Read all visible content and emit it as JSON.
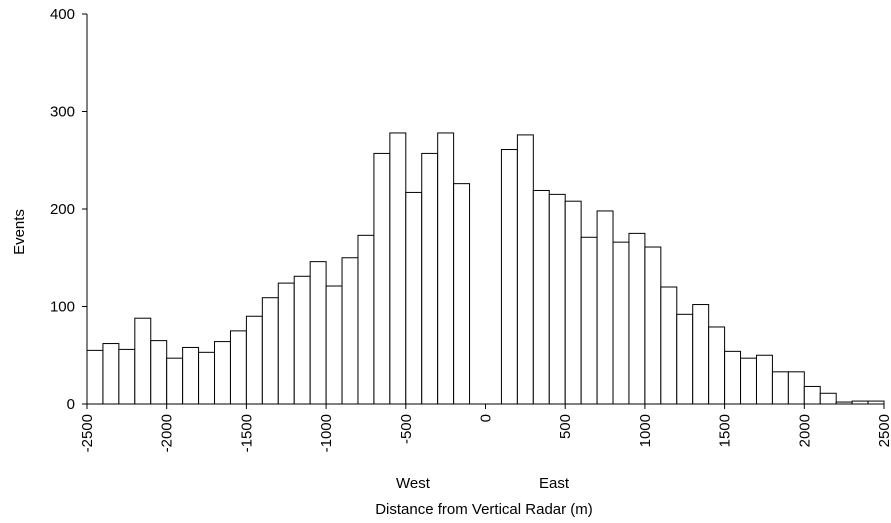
{
  "chart_data": {
    "type": "bar",
    "xlabel": "Distance from Vertical Radar (m)",
    "ylabel": "Events",
    "direction_labels": {
      "west": "West",
      "east": "East"
    },
    "ylim": [
      0,
      400
    ],
    "yticks": [
      0,
      100,
      200,
      300,
      400
    ],
    "xlim": [
      -2500,
      2500
    ],
    "xticks": [
      -2500,
      -2000,
      -1500,
      -1000,
      -500,
      0,
      500,
      1000,
      1500,
      2000,
      2500
    ],
    "bin_width": 100,
    "bins": [
      {
        "x": -2500,
        "value": 55
      },
      {
        "x": -2400,
        "value": 62
      },
      {
        "x": -2300,
        "value": 56
      },
      {
        "x": -2200,
        "value": 88
      },
      {
        "x": -2100,
        "value": 65
      },
      {
        "x": -2000,
        "value": 47
      },
      {
        "x": -1900,
        "value": 58
      },
      {
        "x": -1800,
        "value": 53
      },
      {
        "x": -1700,
        "value": 64
      },
      {
        "x": -1600,
        "value": 75
      },
      {
        "x": -1500,
        "value": 90
      },
      {
        "x": -1400,
        "value": 109
      },
      {
        "x": -1300,
        "value": 124
      },
      {
        "x": -1200,
        "value": 131
      },
      {
        "x": -1100,
        "value": 146
      },
      {
        "x": -1000,
        "value": 121
      },
      {
        "x": -900,
        "value": 150
      },
      {
        "x": -800,
        "value": 173
      },
      {
        "x": -700,
        "value": 257
      },
      {
        "x": -600,
        "value": 278
      },
      {
        "x": -500,
        "value": 217
      },
      {
        "x": -400,
        "value": 257
      },
      {
        "x": -300,
        "value": 278
      },
      {
        "x": -200,
        "value": 226
      },
      {
        "x": -100,
        "value": 0
      },
      {
        "x": 0,
        "value": 0
      },
      {
        "x": 100,
        "value": 261
      },
      {
        "x": 200,
        "value": 276
      },
      {
        "x": 300,
        "value": 219
      },
      {
        "x": 400,
        "value": 215
      },
      {
        "x": 500,
        "value": 208
      },
      {
        "x": 600,
        "value": 171
      },
      {
        "x": 700,
        "value": 198
      },
      {
        "x": 800,
        "value": 166
      },
      {
        "x": 900,
        "value": 175
      },
      {
        "x": 1000,
        "value": 161
      },
      {
        "x": 1100,
        "value": 120
      },
      {
        "x": 1200,
        "value": 92
      },
      {
        "x": 1300,
        "value": 102
      },
      {
        "x": 1400,
        "value": 79
      },
      {
        "x": 1500,
        "value": 54
      },
      {
        "x": 1600,
        "value": 47
      },
      {
        "x": 1700,
        "value": 50
      },
      {
        "x": 1800,
        "value": 33
      },
      {
        "x": 1900,
        "value": 33
      },
      {
        "x": 2000,
        "value": 18
      },
      {
        "x": 2100,
        "value": 11
      },
      {
        "x": 2200,
        "value": 2
      },
      {
        "x": 2300,
        "value": 3
      },
      {
        "x": 2400,
        "value": 3
      }
    ],
    "bar_fill": "#ffffff",
    "bar_stroke": "#000000",
    "grid": false,
    "legend": "none"
  }
}
